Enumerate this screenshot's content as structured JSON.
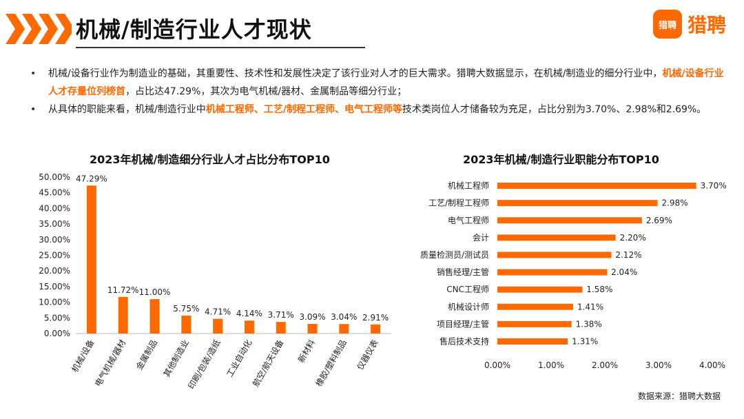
{
  "header": {
    "title": "机械/制造行业人才现状",
    "logo_badge": "猎聘",
    "logo_text": "猎聘"
  },
  "colors": {
    "accent": "#FF6A00"
  },
  "bullets": [
    {
      "parts": [
        {
          "text": "机械/设备行业作为制造业的基础，其重要性、技术性和发展性决定了该行业对人才的巨大需求。猎聘大数据显示，在机械/制造业的细分行业中，",
          "hl": false
        },
        {
          "text": "机械/设备行业人才存量位列榜首",
          "hl": true
        },
        {
          "text": "，占比达47.29%，其次为电气机械/器材、金属制品等细分行业；",
          "hl": false
        }
      ]
    },
    {
      "parts": [
        {
          "text": "从具体的职能来看，机械/制造行业中",
          "hl": false
        },
        {
          "text": "机械工程师、工艺/制程工程师、电气工程师等",
          "hl": true
        },
        {
          "text": "技术类岗位人才储备较为充足，占比分别为3.70%、2.98%和2.69%。",
          "hl": false
        }
      ]
    }
  ],
  "footer": {
    "source": "数据来源：猎聘大数据"
  },
  "chart_data": [
    {
      "type": "bar",
      "title": "2023年机械/制造细分行业人才占比分布TOP10",
      "categories": [
        "机械/设备",
        "电气机械/器材",
        "金属制品",
        "其他制造业",
        "印刷/包装/造纸",
        "工业自动化",
        "航空/航天设备",
        "新材料",
        "橡胶/塑料制品",
        "仪器仪表"
      ],
      "values": [
        47.29,
        11.72,
        11.0,
        5.75,
        4.71,
        4.14,
        3.71,
        3.09,
        3.04,
        2.91
      ],
      "value_labels": [
        "47.29%",
        "11.72%",
        "11.00%",
        "5.75%",
        "4.71%",
        "4.14%",
        "3.71%",
        "3.09%",
        "3.04%",
        "2.91%"
      ],
      "ylim": [
        0,
        50
      ],
      "yticks": [
        "0.00%",
        "5.00%",
        "10.00%",
        "15.00%",
        "20.00%",
        "25.00%",
        "30.00%",
        "35.00%",
        "40.00%",
        "45.00%",
        "50.00%"
      ],
      "xlabel": "",
      "ylabel": ""
    },
    {
      "type": "bar",
      "orientation": "horizontal",
      "title": "2023年机械/制造行业职能分布TOP10",
      "categories": [
        "机械工程师",
        "工艺/制程工程师",
        "电气工程师",
        "会计",
        "质量检测员/测试员",
        "销售经理/主管",
        "CNC工程师",
        "机械设计师",
        "项目经理/主管",
        "售后技术支持"
      ],
      "values": [
        3.7,
        2.98,
        2.69,
        2.2,
        2.12,
        2.04,
        1.58,
        1.41,
        1.38,
        1.31
      ],
      "value_labels": [
        "3.70%",
        "2.98%",
        "2.69%",
        "2.20%",
        "2.12%",
        "2.04%",
        "1.58%",
        "1.41%",
        "1.38%",
        "1.31%"
      ],
      "xlim": [
        0,
        4
      ],
      "xticks": [
        "0.00%",
        "1.00%",
        "2.00%",
        "3.00%",
        "4.00%"
      ],
      "xlabel": "",
      "ylabel": ""
    }
  ]
}
